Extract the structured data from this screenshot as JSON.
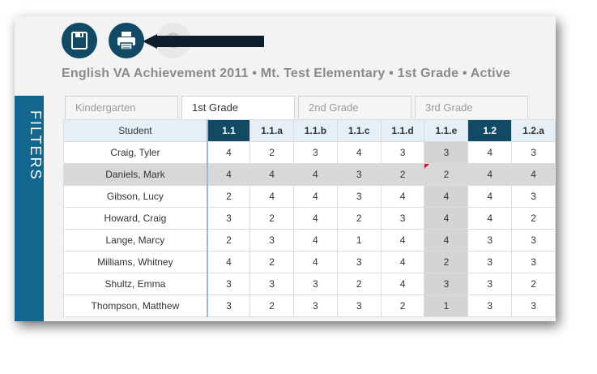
{
  "toolbar": {
    "save_icon": "floppy-disk-icon",
    "print_icon": "printer-icon",
    "refresh_icon": "refresh-icon",
    "arrow_icon": "pointer-arrow-icon"
  },
  "title": "English VA Achievement 2011 • Mt. Test Elementary • 1st Grade • Active",
  "sidebar": {
    "filters_label": "FILTERS"
  },
  "tabs": [
    {
      "label": "Kindergarten",
      "active": false
    },
    {
      "label": "1st Grade",
      "active": true
    },
    {
      "label": "2nd Grade",
      "active": false
    },
    {
      "label": "3rd Grade",
      "active": false
    }
  ],
  "grid": {
    "student_header": "Student",
    "columns": [
      "1.1",
      "1.1.a",
      "1.1.b",
      "1.1.c",
      "1.1.d",
      "1.1.e",
      "1.2",
      "1.2.a"
    ],
    "rows": [
      {
        "name": "Craig, Tyler",
        "scores": [
          "4",
          "2",
          "3",
          "4",
          "3",
          "3",
          "4",
          "3"
        ]
      },
      {
        "name": "Daniels, Mark",
        "scores": [
          "4",
          "4",
          "4",
          "3",
          "2",
          "2",
          "4",
          "4"
        ]
      },
      {
        "name": "Gibson, Lucy",
        "scores": [
          "2",
          "4",
          "4",
          "3",
          "4",
          "4",
          "4",
          "3"
        ]
      },
      {
        "name": "Howard, Craig",
        "scores": [
          "3",
          "2",
          "4",
          "2",
          "3",
          "4",
          "4",
          "2"
        ]
      },
      {
        "name": "Lange, Marcy",
        "scores": [
          "2",
          "3",
          "4",
          "1",
          "4",
          "4",
          "3",
          "3"
        ]
      },
      {
        "name": "Milliams, Whitney",
        "scores": [
          "4",
          "2",
          "4",
          "3",
          "4",
          "2",
          "3",
          "3"
        ]
      },
      {
        "name": "Shultz, Emma",
        "scores": [
          "3",
          "3",
          "3",
          "2",
          "4",
          "3",
          "3",
          "2"
        ]
      },
      {
        "name": "Thompson, Matthew",
        "scores": [
          "3",
          "2",
          "3",
          "3",
          "2",
          "1",
          "3",
          "3"
        ]
      }
    ]
  },
  "colors": {
    "accent_dark": "#124a66",
    "sidebar_blue": "#13678f",
    "header_light": "#e6eef6",
    "flag_red": "#c0202b"
  }
}
